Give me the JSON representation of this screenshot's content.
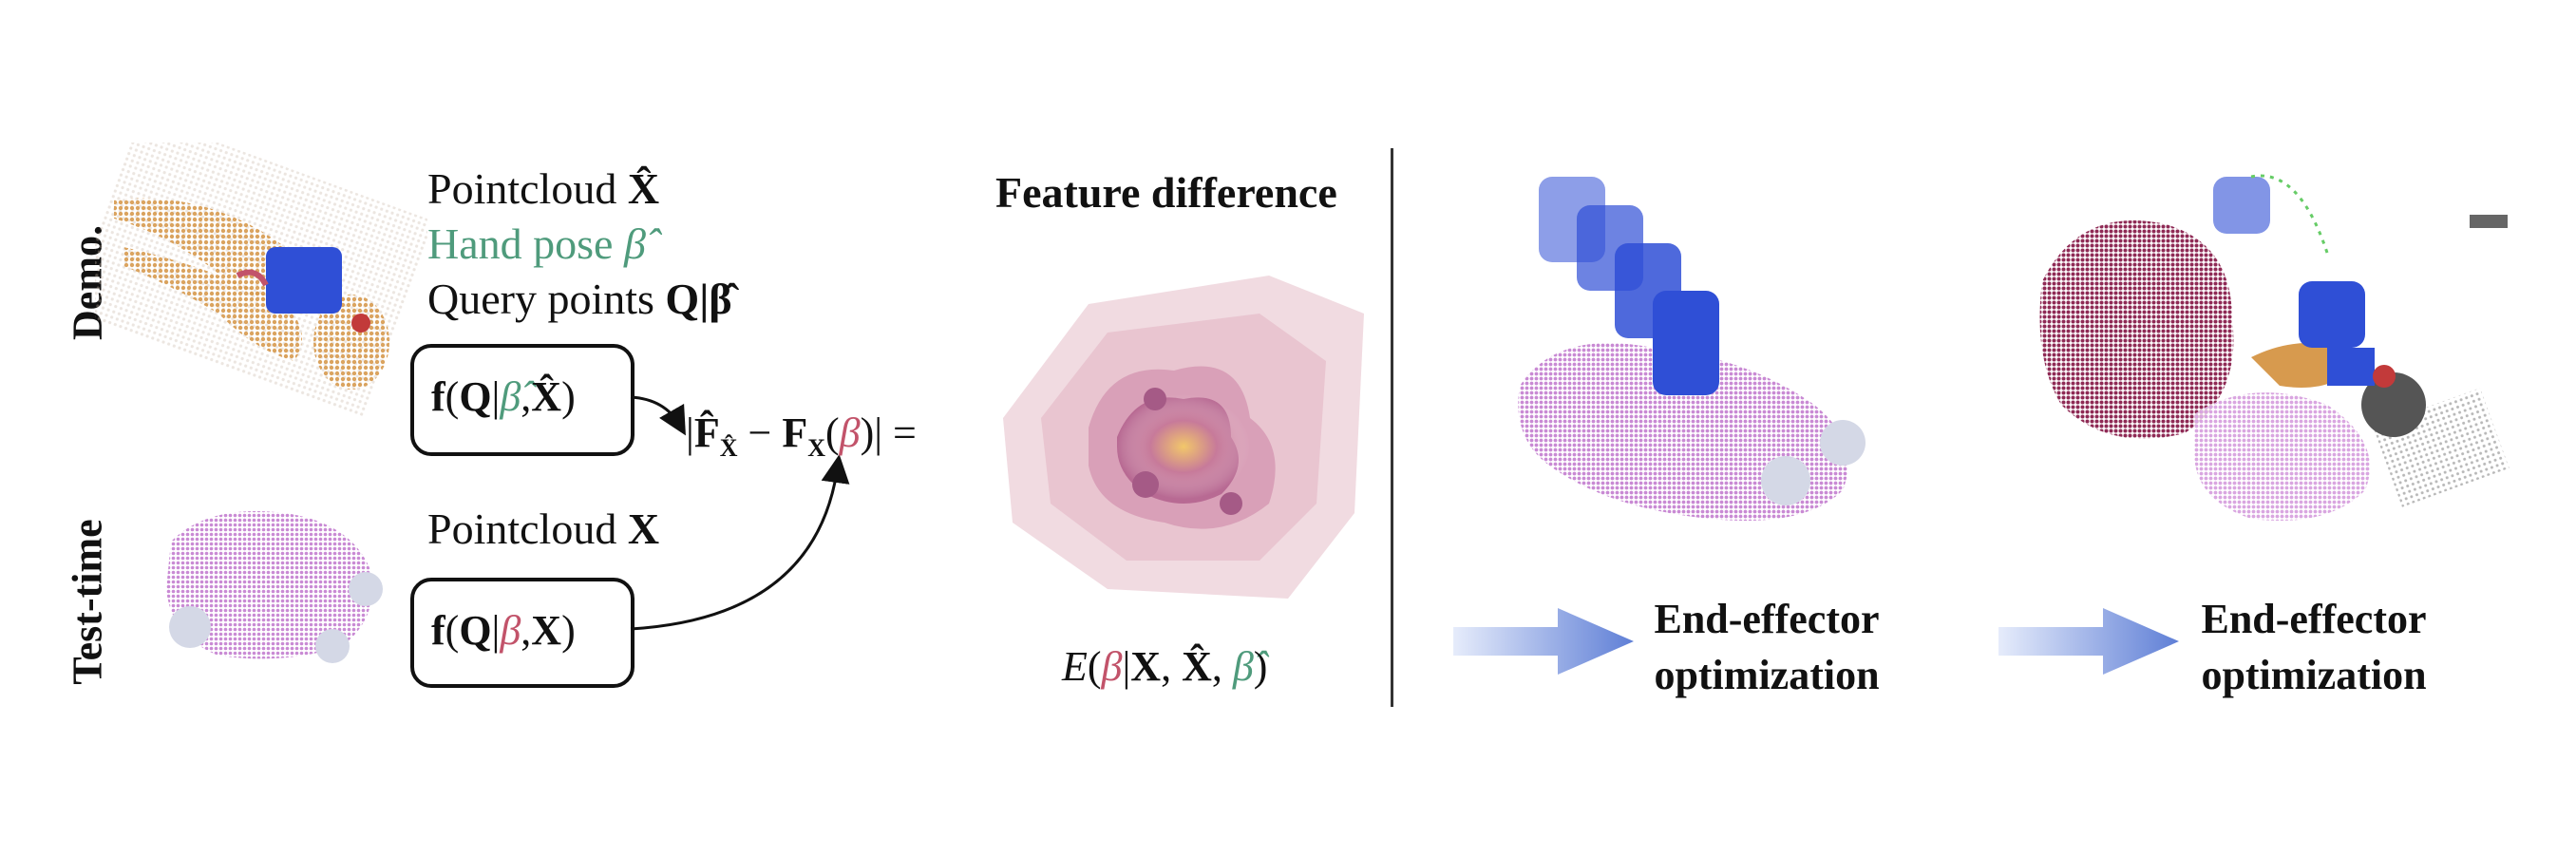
{
  "rows": {
    "demo": "Demo.",
    "test": "Test-time"
  },
  "demo_labels": {
    "pointcloud": "Pointcloud",
    "pointcloud_sym": "X̂",
    "hand_pose": "Hand pose",
    "hand_pose_sym": "β̂",
    "query": "Query points",
    "query_sym": "Q|β̂"
  },
  "demo_box": {
    "f": "f",
    "open": "(",
    "Q": "Q",
    "bar": "|",
    "beta": "β̂",
    "comma": ",",
    "X": "X̂",
    "close": ")"
  },
  "test_labels": {
    "pointcloud": "Pointcloud",
    "pointcloud_sym": "X"
  },
  "test_box": {
    "f": "f",
    "open": "(",
    "Q": "Q",
    "bar": "|",
    "beta": "β",
    "comma": ",",
    "X": "X",
    "close": ")"
  },
  "difference": {
    "left_bar": "|",
    "F_hat": "F̂",
    "F_hat_sub": "X̂",
    "minus": " − ",
    "F": "F",
    "F_sub": "X",
    "open": "(",
    "beta": "β",
    "close": ")",
    "right": "| ="
  },
  "feature_title": "Feature difference",
  "energy": {
    "E": "E",
    "open": "(",
    "beta": "β",
    "bar": "|",
    "X": "X",
    "c1": ", ",
    "Xhat": "X̂",
    "c2": ", ",
    "beta_hat": "β̂",
    "close": ")"
  },
  "captions": {
    "step1_line1": "End-effector",
    "step1_line2": "optimization",
    "step2_line1": "End-effector",
    "step2_line2": "optimization"
  },
  "colors": {
    "green": "#4f9b7c",
    "red": "#c2536a",
    "hand_blue": "#2f4fd6",
    "teddy_pink": "#d9a6e0",
    "teddy_maroon": "#8f2a55",
    "toy_orange": "#d79a4e"
  }
}
